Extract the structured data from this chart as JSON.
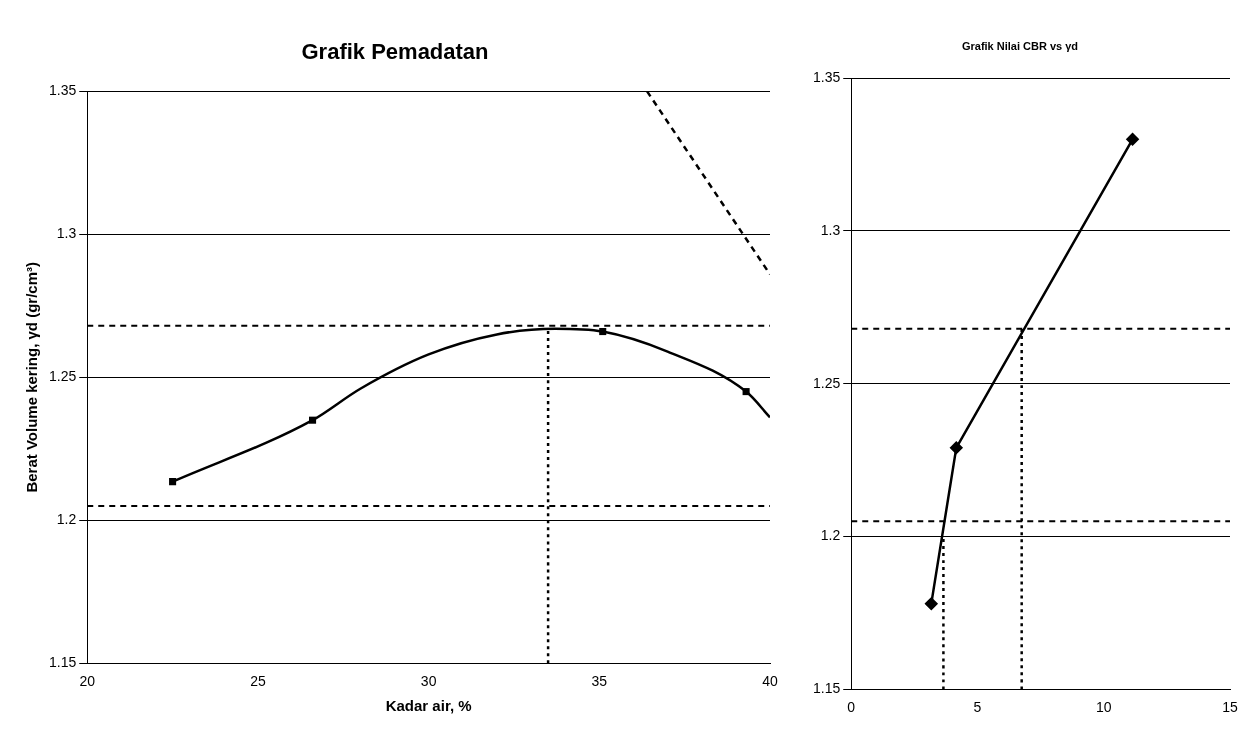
{
  "chart_data": [
    {
      "type": "line",
      "title": "Grafik Pemadatan",
      "xlabel": "Kadar air, %",
      "ylabel": "Berat Volume kering, γd (gr/cm³)",
      "xlim": [
        20,
        40
      ],
      "xticks": [
        20,
        25,
        30,
        35,
        40
      ],
      "ylim": [
        1.15,
        1.35
      ],
      "yticks": [
        1.15,
        1.2,
        1.25,
        1.3,
        1.35
      ],
      "grid": "y",
      "legend": false,
      "series": [
        {
          "type": "scatter",
          "color": "#000000",
          "marker": "square",
          "x": [
            22.5,
            26.6,
            35.1,
            39.3
          ],
          "values": [
            1.2135,
            1.235,
            1.266,
            1.245
          ]
        },
        {
          "type": "line",
          "color": "#000000",
          "marker": "none",
          "line_style": "solid",
          "x": [
            22.5,
            26.6,
            28,
            30,
            32,
            33.7,
            35.1,
            37,
            39.3,
            40
          ],
          "values": [
            1.2135,
            1.235,
            1.246,
            1.258,
            1.265,
            1.267,
            1.266,
            1.259,
            1.245,
            1.236
          ]
        },
        {
          "type": "line",
          "color": "#000000",
          "marker": "none",
          "line_style": "dashed",
          "x": [
            36.4,
            40
          ],
          "values": [
            1.35,
            1.286
          ]
        },
        {
          "type": "line",
          "color": "#000000",
          "marker": "none",
          "line_style": "dotted",
          "x": [
            33.5,
            33.5
          ],
          "values": [
            1.15,
            1.267
          ]
        }
      ],
      "ref_lines": [
        {
          "axis": "y",
          "value": 1.268,
          "line_style": "dashed",
          "color": "#000000"
        },
        {
          "axis": "y",
          "value": 1.205,
          "line_style": "dashed",
          "color": "#000000"
        }
      ]
    },
    {
      "type": "line",
      "title": "Grafik Nilai CBR vs γd",
      "xlim": [
        0,
        15
      ],
      "xticks": [
        0,
        5,
        10,
        15
      ],
      "ylim": [
        1.15,
        1.35
      ],
      "yticks": [
        1.15,
        1.2,
        1.25,
        1.3,
        1.35
      ],
      "grid": "y",
      "legend": false,
      "series": [
        {
          "type": "line",
          "color": "#000000",
          "marker": "diamond",
          "line_style": "solid",
          "x": [
            3.17,
            4.16,
            11.14
          ],
          "values": [
            1.178,
            1.229,
            1.33
          ]
        },
        {
          "type": "line",
          "color": "#000000",
          "marker": "none",
          "line_style": "dotted",
          "x": [
            3.65,
            3.65
          ],
          "values": [
            1.15,
            1.2
          ]
        },
        {
          "type": "line",
          "color": "#000000",
          "marker": "none",
          "line_style": "dotted",
          "x": [
            6.75,
            6.75
          ],
          "values": [
            1.15,
            1.268
          ]
        }
      ],
      "ref_lines": [
        {
          "axis": "y",
          "value": 1.268,
          "line_style": "dashed",
          "color": "#000000"
        },
        {
          "axis": "y",
          "value": 1.205,
          "line_style": "dashed",
          "color": "#000000"
        }
      ]
    }
  ]
}
